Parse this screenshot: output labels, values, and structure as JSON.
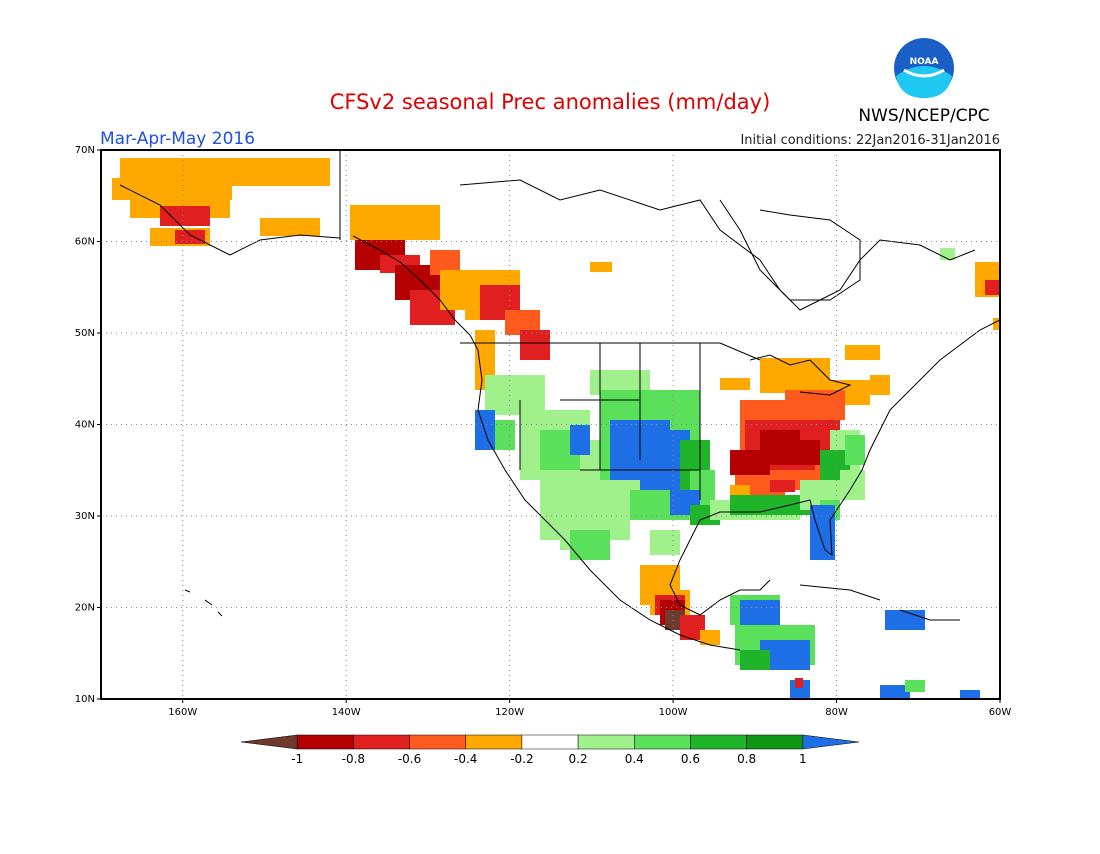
{
  "title": "CFSv2 seasonal Prec anomalies (mm/day)",
  "period": "Mar-Apr-May 2016",
  "agency": "NWS/NCEP/CPC",
  "logo_text": "NOAA",
  "init_conditions": "Initial conditions: 22Jan2016-31Jan2016",
  "lat_labels": [
    "70N",
    "60N",
    "50N",
    "40N",
    "30N",
    "20N",
    "10N"
  ],
  "lon_labels": [
    "160W",
    "140W",
    "120W",
    "100W",
    "80W",
    "60W"
  ],
  "colorbar": {
    "ticks": [
      "-1",
      "-0.8",
      "-0.6",
      "-0.4",
      "-0.2",
      "0.2",
      "0.4",
      "0.6",
      "0.8",
      "1"
    ],
    "colors": [
      "#6e3a2e",
      "#b40000",
      "#e02020",
      "#ff5a1e",
      "#ffa800",
      "#ffffff",
      "#a0f08c",
      "#5ae05a",
      "#20b42a",
      "#0c9614",
      "#1e6ee6"
    ]
  },
  "colors": {
    "title": "#e00000",
    "period": "#2050e0",
    "logo_blue": "#1a5fc6",
    "logo_cyan": "#1ec8f0",
    "lines": "#000000"
  }
}
